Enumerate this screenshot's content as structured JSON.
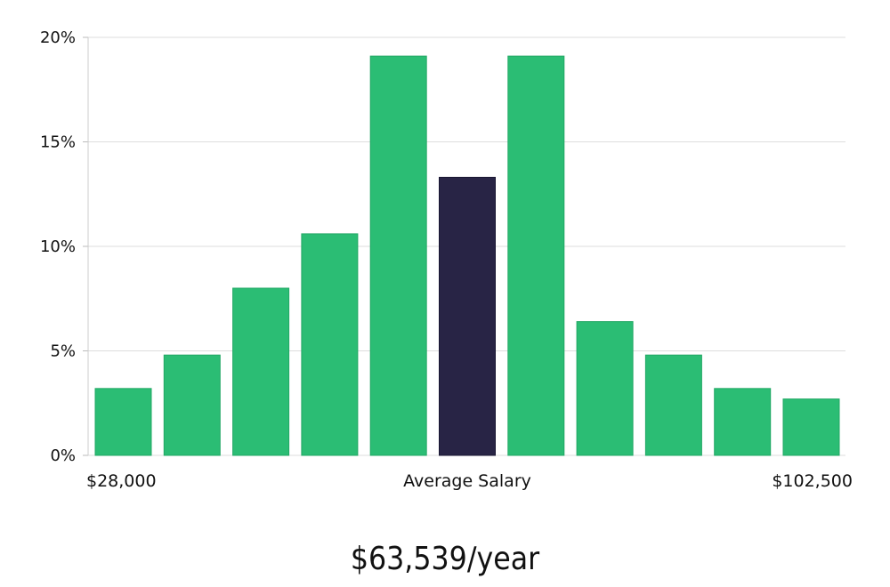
{
  "chart_data": {
    "type": "bar",
    "values": [
      3.2,
      4.8,
      8.0,
      10.6,
      19.1,
      13.3,
      19.1,
      6.4,
      4.8,
      3.2,
      2.7
    ],
    "highlight_index": 5,
    "colors": {
      "bar": "#2bbd74",
      "highlight": "#282445",
      "grid": "#dddddd"
    },
    "ylim": [
      0,
      20
    ],
    "yticks": [
      0,
      5,
      10,
      15,
      20
    ],
    "ytick_labels": [
      "0%",
      "5%",
      "10%",
      "15%",
      "20%"
    ],
    "x_labels": {
      "left": "$28,000",
      "center": "Average Salary",
      "right": "$102,500"
    },
    "grid": true
  },
  "summary": {
    "average_salary": "$63,539/year"
  }
}
